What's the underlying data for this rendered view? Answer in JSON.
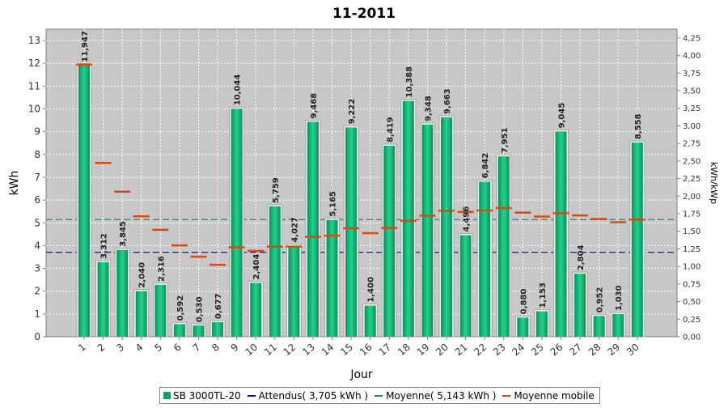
{
  "chart_data": {
    "type": "bar",
    "title": "11-2011",
    "xlabel": "Jour",
    "ylabel": "kWh",
    "y2label": "kWh/kWp",
    "ylim": [
      0,
      13.5
    ],
    "y2lim": [
      0,
      4.375
    ],
    "y_ticks": [
      "0",
      "1",
      "2",
      "3",
      "4",
      "5",
      "6",
      "7",
      "8",
      "9",
      "10",
      "11",
      "12",
      "13"
    ],
    "y2_ticks": [
      "0,00",
      "0,25",
      "0,50",
      "0,75",
      "1,00",
      "1,25",
      "1,50",
      "1,75",
      "2,00",
      "2,25",
      "2,50",
      "2,75",
      "3,00",
      "3,25",
      "3,50",
      "3,75",
      "4,00",
      "4,25"
    ],
    "categories": [
      "1",
      "2",
      "3",
      "4",
      "5",
      "6",
      "7",
      "8",
      "9",
      "10",
      "11",
      "12",
      "13",
      "14",
      "15",
      "16",
      "17",
      "18",
      "19",
      "20",
      "21",
      "22",
      "23",
      "24",
      "25",
      "26",
      "27",
      "28",
      "29",
      "30"
    ],
    "series": [
      {
        "name": "SB 3000TL-20",
        "values": [
          11.947,
          3.312,
          3.845,
          2.04,
          2.316,
          0.592,
          0.53,
          0.677,
          10.044,
          2.404,
          5.759,
          4.027,
          9.468,
          5.165,
          9.222,
          1.4,
          8.419,
          10.388,
          9.348,
          9.663,
          4.496,
          6.842,
          7.951,
          0.88,
          1.153,
          9.045,
          2.804,
          0.952,
          1.03,
          8.558
        ],
        "labels": [
          "11,947",
          "3,312",
          "3,845",
          "2,040",
          "2,316",
          "0,592",
          "0,530",
          "0,677",
          "10,044",
          "2,404",
          "5,759",
          "4,027",
          "9,468",
          "5,165",
          "9,222",
          "1,400",
          "8,419",
          "10,388",
          "9,348",
          "9,663",
          "4,496",
          "6,842",
          "7,951",
          "0,880",
          "1,153",
          "9,045",
          "2,804",
          "0,952",
          "1,030",
          "8,558"
        ],
        "color": "#1bbf7d"
      },
      {
        "name": "Moyenne mobile",
        "values": [
          11.947,
          7.63,
          6.368,
          5.286,
          4.692,
          4.008,
          3.511,
          3.157,
          3.922,
          3.77,
          3.951,
          3.958,
          4.382,
          4.437,
          4.756,
          4.546,
          4.774,
          5.087,
          5.311,
          5.529,
          5.48,
          5.542,
          5.647,
          5.448,
          5.277,
          5.422,
          5.325,
          5.169,
          5.026,
          5.143
        ],
        "color": "#d94a12"
      }
    ],
    "reference_lines": [
      {
        "name": "Attendus( 3,705 kWh )",
        "value": 3.705,
        "color": "#0000c8"
      },
      {
        "name": "Moyenne( 5,143 kWh )",
        "value": 5.143,
        "color": "#1a8a6a"
      }
    ]
  }
}
